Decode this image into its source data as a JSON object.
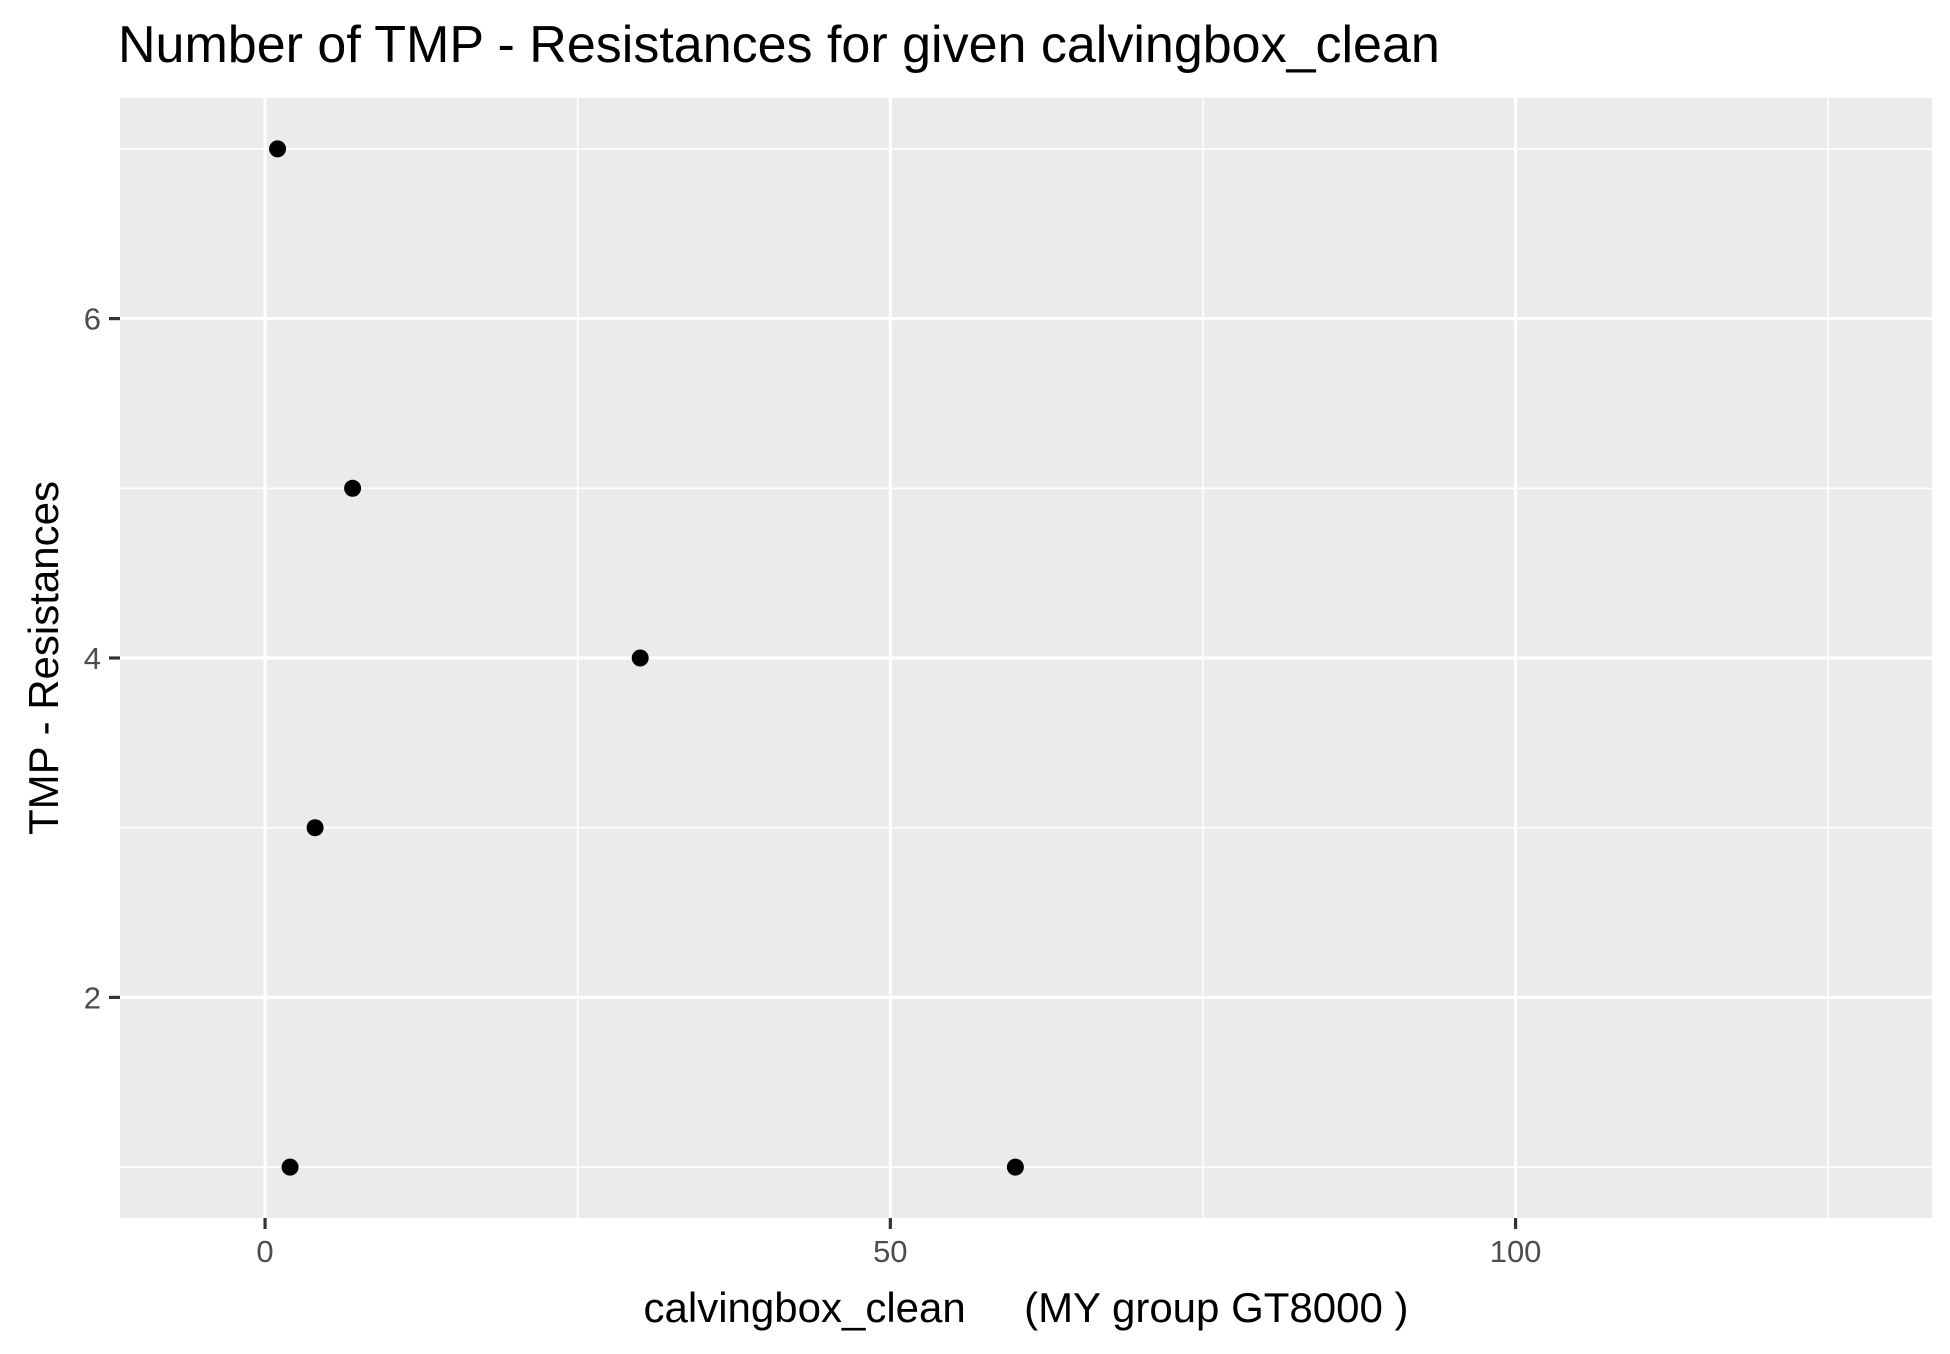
{
  "chart_data": {
    "type": "scatter",
    "title": "Number of TMP - Resistances for given calvingbox_clean",
    "xlabel": "calvingbox_clean     (MY group GT8000 )",
    "ylabel": "TMP - Resistances",
    "xlim": [
      -11.6,
      133.3
    ],
    "ylim": [
      0.7,
      7.3
    ],
    "x_ticks": [
      0,
      50,
      100
    ],
    "x_minor_ticks": [
      25,
      75,
      125
    ],
    "y_ticks": [
      2,
      4,
      6
    ],
    "y_minor_ticks": [
      1,
      3,
      5,
      7
    ],
    "grid": true,
    "legend": "none",
    "points": [
      {
        "x": 1,
        "y": 7
      },
      {
        "x": 7,
        "y": 5
      },
      {
        "x": 30,
        "y": 4
      },
      {
        "x": 4,
        "y": 3
      },
      {
        "x": 2,
        "y": 1
      },
      {
        "x": 60,
        "y": 1
      }
    ],
    "colors": {
      "panel": "#ebebeb",
      "grid": "#ffffff",
      "point": "#000000",
      "tick": "#333333"
    }
  }
}
